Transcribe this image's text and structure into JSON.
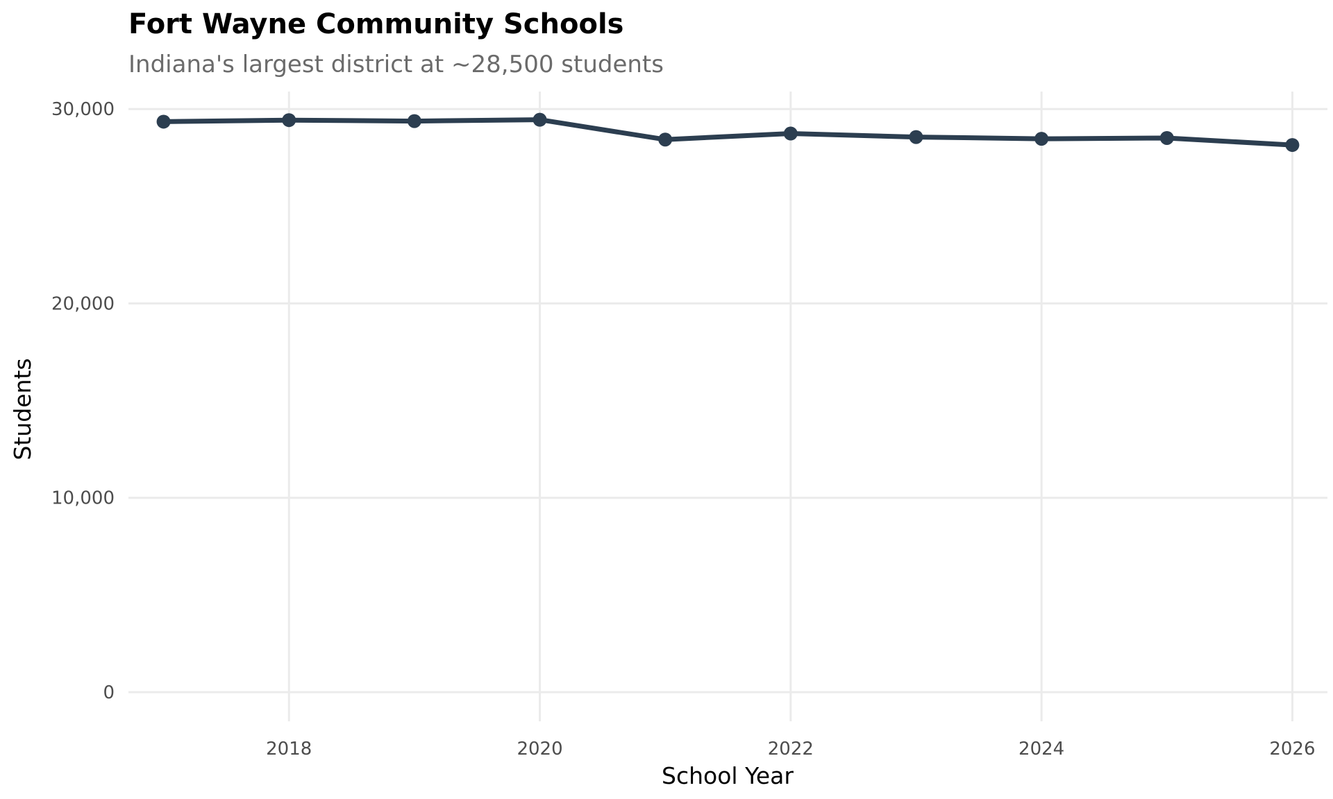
{
  "chart_data": {
    "type": "line",
    "title": "Fort Wayne Community Schools",
    "subtitle": "Indiana's largest district at ~28,500 students",
    "xlabel": "School Year",
    "ylabel": "Students",
    "xlim": [
      2016.72,
      2026.28
    ],
    "ylim": [
      -1500,
      30900
    ],
    "x_ticks": [
      2018,
      2020,
      2022,
      2024,
      2026
    ],
    "x_tick_labels": [
      "2018",
      "2020",
      "2022",
      "2024",
      "2026"
    ],
    "y_ticks": [
      0,
      10000,
      20000,
      30000
    ],
    "y_tick_labels": [
      "0",
      "10,000",
      "20,000",
      "30,000"
    ],
    "grid": true,
    "series": [
      {
        "name": "Students",
        "color": "#2c3e50",
        "x": [
          2017,
          2018,
          2019,
          2020,
          2021,
          2022,
          2023,
          2024,
          2025,
          2026
        ],
        "values": [
          29350,
          29430,
          29380,
          29450,
          28430,
          28740,
          28560,
          28470,
          28510,
          28150
        ]
      }
    ]
  }
}
